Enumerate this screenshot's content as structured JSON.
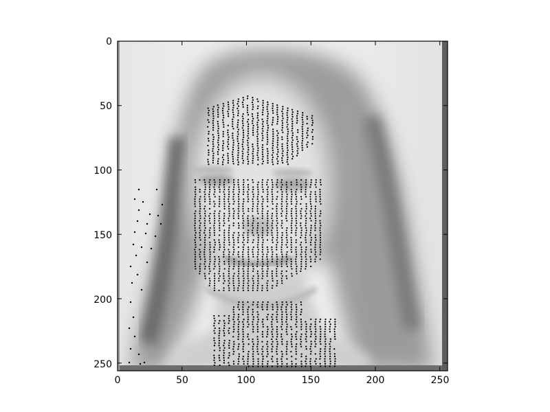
{
  "figure": {
    "x_tick_labels": [
      "0",
      "50",
      "100",
      "150",
      "200",
      "250"
    ],
    "y_tick_labels": [
      "0",
      "50",
      "100",
      "150",
      "200",
      "250"
    ],
    "x_range": [
      0,
      256
    ],
    "y_range": [
      256,
      0
    ],
    "image_size": [
      256,
      256
    ],
    "colormap": "gray",
    "content": "grayscale face portrait overlaid with black dot-stipple tracks"
  }
}
